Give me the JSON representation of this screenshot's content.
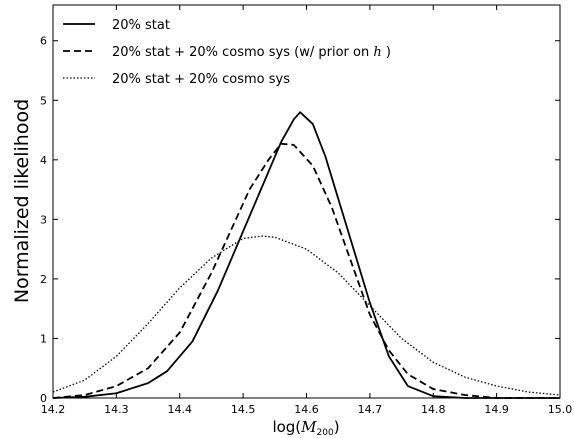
{
  "chart_data": {
    "type": "line",
    "title": "",
    "xlabel": "log(M200)",
    "ylabel": "Normalized likelihood",
    "xlim": [
      14.2,
      15.0
    ],
    "ylim": [
      0,
      6.6
    ],
    "x_ticks": [
      "14.2",
      "14.3",
      "14.4",
      "14.5",
      "14.6",
      "14.7",
      "14.8",
      "14.9",
      "15.0"
    ],
    "y_ticks": [
      "0",
      "1",
      "2",
      "3",
      "4",
      "5",
      "6"
    ],
    "legend_position": "top-left",
    "grid": false,
    "series": [
      {
        "name": "20% stat",
        "style": "solid",
        "x": [
          14.2,
          14.25,
          14.3,
          14.35,
          14.38,
          14.42,
          14.46,
          14.5,
          14.54,
          14.56,
          14.58,
          14.59,
          14.61,
          14.63,
          14.66,
          14.7,
          14.73,
          14.76,
          14.8,
          14.85,
          14.9,
          15.0
        ],
        "y": [
          0.0,
          0.02,
          0.08,
          0.25,
          0.45,
          0.95,
          1.8,
          2.8,
          3.8,
          4.3,
          4.68,
          4.8,
          4.6,
          4.05,
          3.0,
          1.6,
          0.7,
          0.2,
          0.03,
          0.0,
          0.0,
          0.0
        ]
      },
      {
        "name": "20% stat + 20% cosmo sys (w/ prior on h )",
        "style": "dashed",
        "x": [
          14.2,
          14.25,
          14.3,
          14.35,
          14.4,
          14.45,
          14.48,
          14.51,
          14.54,
          14.56,
          14.58,
          14.61,
          14.64,
          14.67,
          14.7,
          14.73,
          14.76,
          14.8,
          14.85,
          14.9,
          15.0
        ],
        "y": [
          0.0,
          0.05,
          0.2,
          0.5,
          1.1,
          2.1,
          2.8,
          3.5,
          4.0,
          4.27,
          4.25,
          3.9,
          3.2,
          2.3,
          1.4,
          0.8,
          0.4,
          0.15,
          0.05,
          0.0,
          0.0
        ]
      },
      {
        "name": "20% stat + 20% cosmo sys",
        "style": "dotted",
        "x": [
          14.2,
          14.25,
          14.3,
          14.35,
          14.4,
          14.45,
          14.5,
          14.53,
          14.55,
          14.6,
          14.65,
          14.7,
          14.75,
          14.8,
          14.85,
          14.9,
          14.95,
          15.0
        ],
        "y": [
          0.1,
          0.3,
          0.7,
          1.25,
          1.85,
          2.35,
          2.68,
          2.72,
          2.7,
          2.5,
          2.1,
          1.55,
          1.0,
          0.6,
          0.35,
          0.2,
          0.1,
          0.05
        ]
      }
    ]
  }
}
